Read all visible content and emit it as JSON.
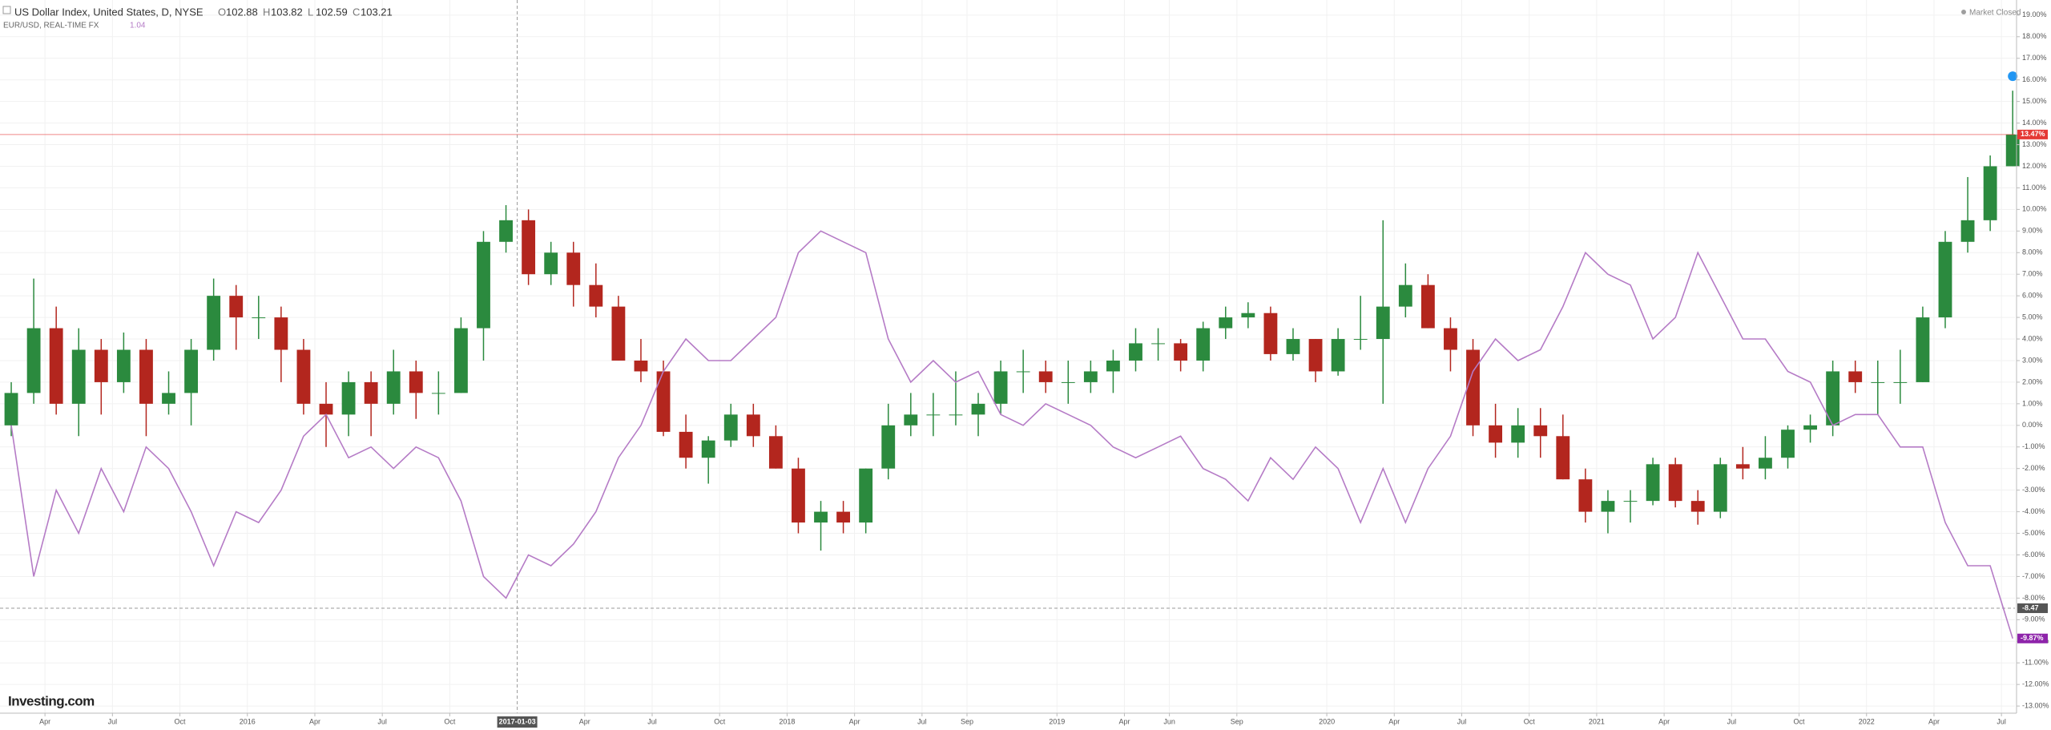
{
  "chart_data": {
    "type": "candlestick",
    "title": "US Dollar Index, United States, D, NYSE",
    "ohlc_header": [
      {
        "label": "O",
        "value": 102.88
      },
      {
        "label": "H",
        "value": 103.82
      },
      {
        "label": "L",
        "value": 102.59
      },
      {
        "label": "C",
        "value": 103.21
      }
    ],
    "status": "Market Closed",
    "brand": "Investing.com",
    "grid": true,
    "series": [
      {
        "name": "US Dollar Index, United States, D, NYSE",
        "type": "candlestick",
        "up_color": "#2b8a3e",
        "down_color": "#b3261e",
        "open": [
          0,
          1.5,
          4.5,
          1.0,
          3.5,
          2.0,
          3.5,
          1.0,
          1.5,
          3.5,
          6.0,
          5.0,
          5.0,
          3.5,
          1.0,
          0.5,
          2.0,
          1.0,
          2.5,
          1.5,
          1.5,
          4.5,
          8.5,
          9.5,
          7.0,
          8.0,
          6.5,
          5.5,
          3.0,
          2.5,
          -0.3,
          -1.5,
          -0.7,
          0.5,
          -0.5,
          -2.0,
          -4.5,
          -4.0,
          -4.5,
          -2.0,
          0.0,
          0.5,
          0.5,
          0.5,
          1.0,
          2.5,
          2.5,
          2.0,
          2.0,
          2.5,
          3.0,
          3.8,
          3.8,
          3.0,
          4.5,
          5.0,
          5.2,
          3.3,
          4.0,
          2.5,
          4.0,
          4.0,
          5.5,
          6.5,
          4.5,
          3.5,
          0.0,
          -0.8,
          0.0,
          -0.5,
          -2.5,
          -4.0,
          -3.5,
          -3.5,
          -1.8,
          -3.5,
          -4.0,
          -1.8,
          -2.0,
          -1.5,
          -0.2,
          0.0,
          2.5,
          2.0,
          2.0,
          2.0,
          5.0,
          8.5,
          9.5,
          12.0
        ],
        "high": [
          2,
          6.8,
          5.5,
          4.5,
          4.0,
          4.3,
          4.0,
          2.5,
          4.0,
          6.8,
          6.5,
          6.0,
          5.5,
          4.0,
          2.0,
          2.5,
          2.5,
          3.5,
          3.0,
          2.5,
          5.0,
          9.0,
          10.2,
          10.0,
          8.5,
          8.5,
          7.5,
          6.0,
          4.0,
          3.0,
          0.5,
          -0.5,
          1.0,
          1.0,
          0.0,
          -1.5,
          -3.5,
          -3.5,
          -2.0,
          1.0,
          1.5,
          1.5,
          2.5,
          1.5,
          3.0,
          3.5,
          3.0,
          3.0,
          3.0,
          3.5,
          4.5,
          4.5,
          4.0,
          4.8,
          5.5,
          5.7,
          5.5,
          4.5,
          4.0,
          4.5,
          6.0,
          9.5,
          7.5,
          7.0,
          5.0,
          4.0,
          1.0,
          0.8,
          0.8,
          0.5,
          -2.0,
          -3.0,
          -3.0,
          -1.5,
          -1.5,
          -3.0,
          -1.5,
          -1.0,
          -0.5,
          0.0,
          0.5,
          3.0,
          3.0,
          3.0,
          3.5,
          5.5,
          9.0,
          11.5,
          12.5,
          15.5
        ],
        "low": [
          -0.5,
          1.0,
          0.5,
          -0.5,
          0.5,
          1.5,
          -0.5,
          0.5,
          0.0,
          3.0,
          3.5,
          4.0,
          2.0,
          0.5,
          -1.0,
          -0.5,
          -0.5,
          0.5,
          0.3,
          0.5,
          1.5,
          3.0,
          8.0,
          6.5,
          6.5,
          5.5,
          5.0,
          3.0,
          2.0,
          -0.5,
          -2.0,
          -2.7,
          -1.0,
          -1.0,
          -2.0,
          -5.0,
          -5.8,
          -5.0,
          -5.0,
          -2.5,
          -0.5,
          -0.5,
          0.0,
          -0.5,
          0.5,
          1.5,
          1.5,
          1.0,
          1.5,
          1.5,
          2.5,
          3.0,
          2.5,
          2.5,
          4.0,
          4.5,
          3.0,
          3.0,
          2.0,
          2.3,
          3.5,
          1.0,
          5.0,
          4.5,
          2.5,
          -0.5,
          -1.5,
          -1.5,
          -1.5,
          -2.5,
          -4.5,
          -5.0,
          -4.5,
          -3.7,
          -3.8,
          -4.6,
          -4.3,
          -2.5,
          -2.5,
          -2.0,
          -0.8,
          -0.5,
          1.5,
          0.5,
          1.0,
          2.0,
          4.5,
          8.0,
          9.0,
          12.0
        ],
        "close": [
          1.5,
          4.5,
          1.0,
          3.5,
          2.0,
          3.5,
          1.0,
          1.5,
          3.5,
          6.0,
          5.0,
          5.0,
          3.5,
          1.0,
          0.5,
          2.0,
          1.0,
          2.5,
          1.5,
          1.5,
          4.5,
          8.5,
          9.5,
          7.0,
          8.0,
          6.5,
          5.5,
          3.0,
          2.5,
          -0.3,
          -1.5,
          -0.7,
          0.5,
          -0.5,
          -2.0,
          -4.5,
          -4.0,
          -4.5,
          -2.0,
          0.0,
          0.5,
          0.5,
          0.5,
          1.0,
          2.5,
          2.5,
          2.0,
          2.0,
          2.5,
          3.0,
          3.8,
          3.8,
          3.0,
          4.5,
          5.0,
          5.2,
          3.3,
          4.0,
          2.5,
          4.0,
          4.0,
          5.5,
          6.5,
          4.5,
          3.5,
          0.0,
          -0.8,
          0.0,
          -0.5,
          -2.5,
          -4.0,
          -3.5,
          -3.5,
          -1.8,
          -3.5,
          -4.0,
          -1.8,
          -2.0,
          -1.5,
          -0.2,
          0.0,
          2.5,
          2.0,
          2.0,
          2.0,
          5.0,
          8.5,
          9.5,
          12.0,
          13.47
        ],
        "price_line": {
          "value": 13.47,
          "label": "13.47%",
          "color": "#e53935"
        }
      },
      {
        "name": "EUR/USD, REAL-TIME FX",
        "type": "line",
        "color": "#b57bc6",
        "last_price": 1.04,
        "values": [
          0,
          -7,
          -3,
          -5,
          -2,
          -4,
          -1,
          -2,
          -4,
          -6.5,
          -4,
          -4.5,
          -3,
          -0.5,
          0.5,
          -1.5,
          -1,
          -2,
          -1,
          -1.5,
          -3.5,
          -7,
          -8,
          -6,
          -6.5,
          -5.5,
          -4,
          -1.5,
          0,
          2.5,
          4,
          3,
          3,
          4,
          5,
          8,
          9,
          8.5,
          8,
          4,
          2,
          3,
          2,
          2.5,
          0.5,
          0,
          1,
          0.5,
          0,
          -1,
          -1.5,
          -1,
          -0.5,
          -2,
          -2.5,
          -3.5,
          -1.5,
          -2.5,
          -1,
          -2,
          -4.5,
          -2,
          -4.5,
          -2,
          -0.5,
          2.5,
          4,
          3,
          3.5,
          5.5,
          8,
          7,
          6.5,
          4,
          5,
          8,
          6,
          4,
          4,
          2.5,
          2,
          0,
          0.5,
          0.5,
          -1,
          -1,
          -4.5,
          -6.5,
          -6.5,
          -9.87
        ],
        "price_line": {
          "value": -9.87,
          "label": "-9.87%",
          "color": "#8e24aa"
        }
      }
    ],
    "crosshair": {
      "x": {
        "value": 23,
        "label": "2017-01-03"
      },
      "y": {
        "value": -8.47,
        "label": "-8.47"
      }
    },
    "xlim": [
      0,
      89.6
    ],
    "xticks": [
      {
        "value": 2,
        "label": "Apr"
      },
      {
        "value": 5,
        "label": "Jul"
      },
      {
        "value": 8,
        "label": "Oct"
      },
      {
        "value": 11,
        "label": "2016"
      },
      {
        "value": 14,
        "label": "Apr"
      },
      {
        "value": 17,
        "label": "Jul"
      },
      {
        "value": 20,
        "label": "Oct"
      },
      {
        "value": 26,
        "label": "Apr"
      },
      {
        "value": 29,
        "label": "Jul"
      },
      {
        "value": 32,
        "label": "Oct"
      },
      {
        "value": 35,
        "label": "2018"
      },
      {
        "value": 38,
        "label": "Apr"
      },
      {
        "value": 41,
        "label": "Jul"
      },
      {
        "value": 43,
        "label": "Sep"
      },
      {
        "value": 47,
        "label": "2019"
      },
      {
        "value": 50,
        "label": "Apr"
      },
      {
        "value": 52,
        "label": "Jun"
      },
      {
        "value": 55,
        "label": "Sep"
      },
      {
        "value": 59,
        "label": "2020"
      },
      {
        "value": 62,
        "label": "Apr"
      },
      {
        "value": 65,
        "label": "Jul"
      },
      {
        "value": 68,
        "label": "Oct"
      },
      {
        "value": 71,
        "label": "2021"
      },
      {
        "value": 74,
        "label": "Apr"
      },
      {
        "value": 77,
        "label": "Jul"
      },
      {
        "value": 80,
        "label": "Oct"
      },
      {
        "value": 83,
        "label": "2022"
      },
      {
        "value": 86,
        "label": "Apr"
      },
      {
        "value": 89,
        "label": "Jul"
      }
    ],
    "ylim": [
      -13.33,
      19.7
    ],
    "yticks": [
      {
        "value": 19,
        "label": "19.00%"
      },
      {
        "value": 18,
        "label": "18.00%"
      },
      {
        "value": 17,
        "label": "17.00%"
      },
      {
        "value": 16,
        "label": "16.00%"
      },
      {
        "value": 15,
        "label": "15.00%"
      },
      {
        "value": 14,
        "label": "14.00%"
      },
      {
        "value": 13,
        "label": "13.00%"
      },
      {
        "value": 12,
        "label": "12.00%"
      },
      {
        "value": 11,
        "label": "11.00%"
      },
      {
        "value": 10,
        "label": "10.00%"
      },
      {
        "value": 9,
        "label": "9.00%"
      },
      {
        "value": 8,
        "label": "8.00%"
      },
      {
        "value": 7,
        "label": "7.00%"
      },
      {
        "value": 6,
        "label": "6.00%"
      },
      {
        "value": 5,
        "label": "5.00%"
      },
      {
        "value": 4,
        "label": "4.00%"
      },
      {
        "value": 3,
        "label": "3.00%"
      },
      {
        "value": 2,
        "label": "2.00%"
      },
      {
        "value": 1,
        "label": "1.00%"
      },
      {
        "value": 0,
        "label": "0.00%"
      },
      {
        "value": -1,
        "label": "-1.00%"
      },
      {
        "value": -2,
        "label": "-2.00%"
      },
      {
        "value": -3,
        "label": "-3.00%"
      },
      {
        "value": -4,
        "label": "-4.00%"
      },
      {
        "value": -5,
        "label": "-5.00%"
      },
      {
        "value": -6,
        "label": "-6.00%"
      },
      {
        "value": -7,
        "label": "-7.00%"
      },
      {
        "value": -8,
        "label": "-8.00%"
      },
      {
        "value": -9,
        "label": "-9.00%"
      },
      {
        "value": -10,
        "label": "-10.00%"
      },
      {
        "value": -11,
        "label": "-11.00%"
      },
      {
        "value": -12,
        "label": "-12.00%"
      },
      {
        "value": -13,
        "label": "-13.00%"
      }
    ]
  }
}
